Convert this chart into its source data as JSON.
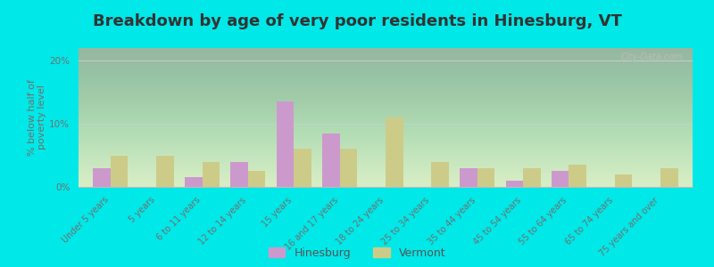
{
  "title": "Breakdown by age of very poor residents in Hinesburg, VT",
  "ylabel": "% below half of\npoverty level",
  "categories": [
    "Under 5 years",
    "5 years",
    "6 to 11 years",
    "12 to 14 years",
    "15 years",
    "16 and 17 years",
    "18 to 24 years",
    "25 to 34 years",
    "35 to 44 years",
    "45 to 54 years",
    "55 to 64 years",
    "65 to 74 years",
    "75 years and over"
  ],
  "hinesburg": [
    3.0,
    0.0,
    1.5,
    4.0,
    13.5,
    8.5,
    0.0,
    0.0,
    3.0,
    1.0,
    2.5,
    0.0,
    0.0
  ],
  "vermont": [
    5.0,
    5.0,
    4.0,
    2.5,
    6.0,
    6.0,
    11.0,
    4.0,
    3.0,
    3.0,
    3.5,
    2.0,
    3.0
  ],
  "hinesburg_color": "#cc99cc",
  "vermont_color": "#cccc88",
  "background_outer": "#00e8e8",
  "ylim": [
    0,
    22
  ],
  "yticks": [
    0,
    10,
    20
  ],
  "ytick_labels": [
    "0%",
    "10%",
    "20%"
  ],
  "bar_width": 0.38,
  "title_fontsize": 13,
  "axis_fontsize": 8,
  "tick_fontsize": 7.5,
  "legend_fontsize": 9,
  "watermark": "City-Data.com"
}
